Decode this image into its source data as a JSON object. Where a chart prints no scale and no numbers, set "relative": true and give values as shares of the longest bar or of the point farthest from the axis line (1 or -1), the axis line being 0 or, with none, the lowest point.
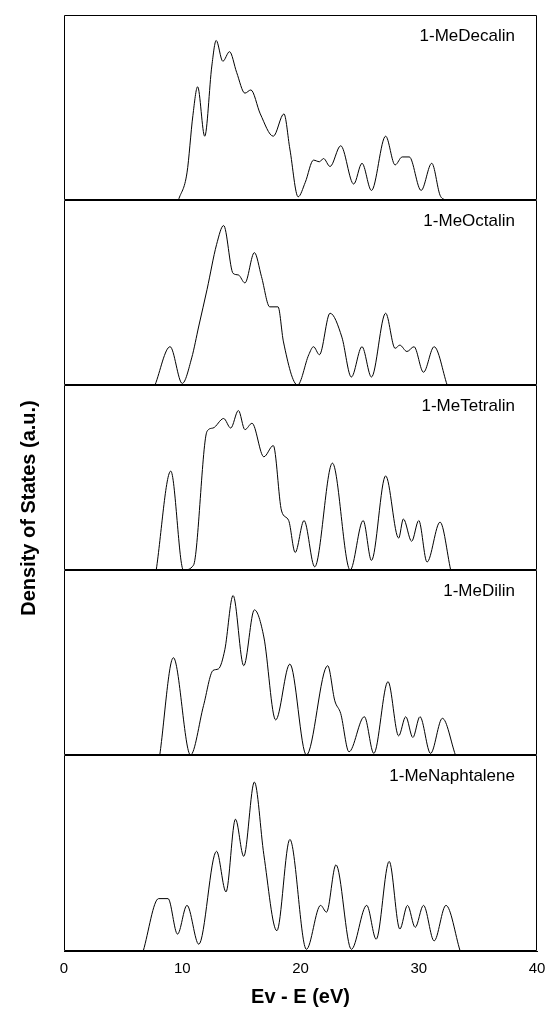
{
  "chart_data": [
    {
      "type": "line",
      "title": "1-MeDecalin",
      "relative": true,
      "color": "#000000",
      "xlim": [
        0,
        40
      ],
      "tick_labels": false,
      "marker": "none",
      "x": [
        9.68,
        10.4,
        10.9,
        11.3,
        11.9,
        12.5,
        12.87,
        13.43,
        14.0,
        14.6,
        15.3,
        15.8,
        16.6,
        17.7,
        18.6,
        19.1,
        19.8,
        20.4,
        21.1,
        21.6,
        21.95,
        22.5,
        23.4,
        24.5,
        25.2,
        26.0,
        27.2,
        28.0,
        28.6,
        29.2,
        30.2,
        31.1,
        31.8,
        32.2
      ],
      "values": [
        0,
        0.17,
        0.53,
        0.71,
        0.4,
        0.84,
        1.0,
        0.87,
        0.93,
        0.8,
        0.67,
        0.69,
        0.54,
        0.4,
        0.54,
        0.32,
        0.02,
        0.11,
        0.25,
        0.24,
        0.26,
        0.21,
        0.34,
        0.1,
        0.23,
        0.06,
        0.4,
        0.22,
        0.27,
        0.27,
        0.06,
        0.23,
        0.03,
        0
      ]
    },
    {
      "type": "line",
      "title": "1-MeOctalin",
      "relative": true,
      "color": "#000000",
      "xlim": [
        0,
        40
      ],
      "tick_labels": false,
      "marker": "none",
      "x": [
        7.7,
        8.97,
        10.0,
        10.8,
        11.4,
        12.1,
        12.9,
        13.5,
        14.3,
        14.75,
        15.3,
        16.1,
        16.7,
        17.4,
        18.1,
        18.56,
        19.75,
        20.7,
        21.1,
        21.6,
        22.5,
        23.5,
        24.3,
        25.2,
        26.0,
        27.2,
        28.0,
        28.4,
        29.0,
        29.6,
        30.4,
        31.3,
        32.4
      ],
      "values": [
        0,
        0.24,
        0.01,
        0.17,
        0.37,
        0.6,
        0.88,
        1.0,
        0.7,
        0.69,
        0.64,
        0.83,
        0.68,
        0.49,
        0.49,
        0.27,
        0,
        0.19,
        0.24,
        0.19,
        0.45,
        0.3,
        0.05,
        0.24,
        0.05,
        0.45,
        0.23,
        0.25,
        0.21,
        0.24,
        0.08,
        0.24,
        0
      ]
    },
    {
      "type": "line",
      "title": "1-MeTetralin",
      "ylabel": "Density of States (a.u.)",
      "relative": true,
      "color": "#000000",
      "xlim": [
        0,
        40
      ],
      "tick_labels": false,
      "marker": "none",
      "x": [
        7.8,
        9.03,
        10.1,
        10.95,
        12.1,
        12.6,
        13.5,
        14.1,
        14.75,
        15.3,
        15.9,
        16.9,
        17.7,
        18.4,
        19.0,
        19.55,
        20.3,
        21.2,
        22.7,
        24.2,
        25.3,
        26.0,
        27.2,
        28.3,
        28.7,
        29.4,
        30.0,
        30.7,
        31.8,
        32.7
      ],
      "values": [
        0,
        0.62,
        0,
        0.03,
        0.87,
        0.89,
        0.95,
        0.89,
        1.0,
        0.88,
        0.92,
        0.71,
        0.78,
        0.37,
        0.31,
        0.11,
        0.31,
        0.02,
        0.67,
        0,
        0.31,
        0.06,
        0.59,
        0.2,
        0.32,
        0.18,
        0.31,
        0.05,
        0.3,
        0
      ]
    },
    {
      "type": "line",
      "title": "1-MeDilin",
      "relative": true,
      "color": "#000000",
      "xlim": [
        0,
        40
      ],
      "tick_labels": false,
      "marker": "none",
      "x": [
        8.1,
        9.25,
        10.7,
        11.8,
        12.6,
        13.06,
        13.6,
        14.3,
        15.2,
        16.1,
        16.9,
        17.9,
        19.1,
        20.5,
        22.3,
        22.9,
        23.4,
        24.1,
        25.4,
        26.2,
        27.4,
        28.3,
        28.9,
        29.5,
        30.1,
        31.0,
        32.0,
        33.1
      ],
      "values": [
        0,
        0.61,
        0,
        0.31,
        0.53,
        0.54,
        0.66,
        1.0,
        0.56,
        0.91,
        0.74,
        0.22,
        0.57,
        0,
        0.56,
        0.34,
        0.26,
        0.02,
        0.24,
        0.01,
        0.46,
        0.12,
        0.24,
        0.11,
        0.24,
        0.01,
        0.23,
        0
      ]
    },
    {
      "type": "line",
      "title": "1-MeNaphtalene",
      "xlabel": "Ev - E (eV)",
      "relative": true,
      "color": "#000000",
      "xlim": [
        0,
        40
      ],
      "xticks": [
        0,
        10,
        20,
        30,
        40
      ],
      "tick_labels": "x",
      "marker": "none",
      "x": [
        6.7,
        8.0,
        8.8,
        9.6,
        10.4,
        11.4,
        12.9,
        13.7,
        14.5,
        15.2,
        16.1,
        16.9,
        18.0,
        19.1,
        20.5,
        21.7,
        22.2,
        23.0,
        24.3,
        25.6,
        26.4,
        27.5,
        28.4,
        29.05,
        29.7,
        30.4,
        31.3,
        32.3,
        33.5
      ],
      "values": [
        0,
        0.31,
        0.31,
        0.1,
        0.27,
        0.04,
        0.59,
        0.35,
        0.78,
        0.56,
        1.0,
        0.57,
        0.12,
        0.66,
        0.01,
        0.27,
        0.23,
        0.51,
        0.01,
        0.27,
        0.07,
        0.53,
        0.13,
        0.27,
        0.14,
        0.27,
        0.06,
        0.27,
        0
      ]
    }
  ]
}
